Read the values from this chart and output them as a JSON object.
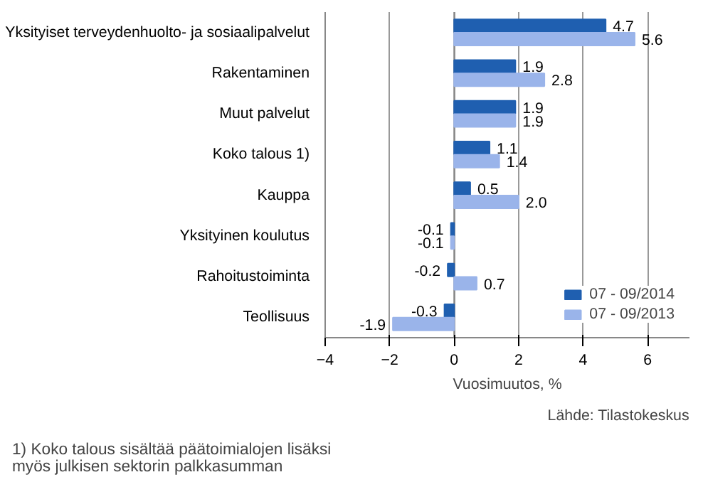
{
  "chart_data": {
    "type": "bar",
    "orientation": "horizontal",
    "xlabel": "Vuosimuutos, %",
    "categories": [
      "Yksityiset terveydenhuolto- ja sosiaalipalvelut",
      "Rakentaminen",
      "Muut palvelut",
      "Koko talous 1)",
      "Kauppa",
      "Yksityinen koulutus",
      "Rahoitustoiminta",
      "Teollisuus"
    ],
    "series": [
      {
        "name": "07 - 09/2014",
        "color": "#1f5fb0",
        "values": [
          4.7,
          1.9,
          1.9,
          1.1,
          0.5,
          -0.1,
          -0.2,
          -0.3
        ],
        "value_labels": [
          "4.7",
          "1.9",
          "1.9",
          "1.1",
          "0.5",
          "-0.1",
          "-0.2",
          "-0.3"
        ]
      },
      {
        "name": "07 - 09/2013",
        "color": "#9ab4ea",
        "values": [
          5.6,
          2.8,
          1.9,
          1.4,
          2.0,
          -0.1,
          0.7,
          -1.9
        ],
        "value_labels": [
          "5.6",
          "2.8",
          "1.9",
          "1.4",
          "2.0",
          "-0.1",
          "0.7",
          "-1.9"
        ]
      }
    ],
    "xlim": [
      -4,
      7.3
    ],
    "xticks": [
      -4,
      -2,
      0,
      2,
      4,
      6
    ],
    "grid": "x",
    "legend": "bottom right",
    "annotations": [
      "1) Koko talous sisältää päätoimialojen lisäksi myös julkisen sektorin palkkasumman",
      "Lähde: Tilastokeskus"
    ]
  }
}
